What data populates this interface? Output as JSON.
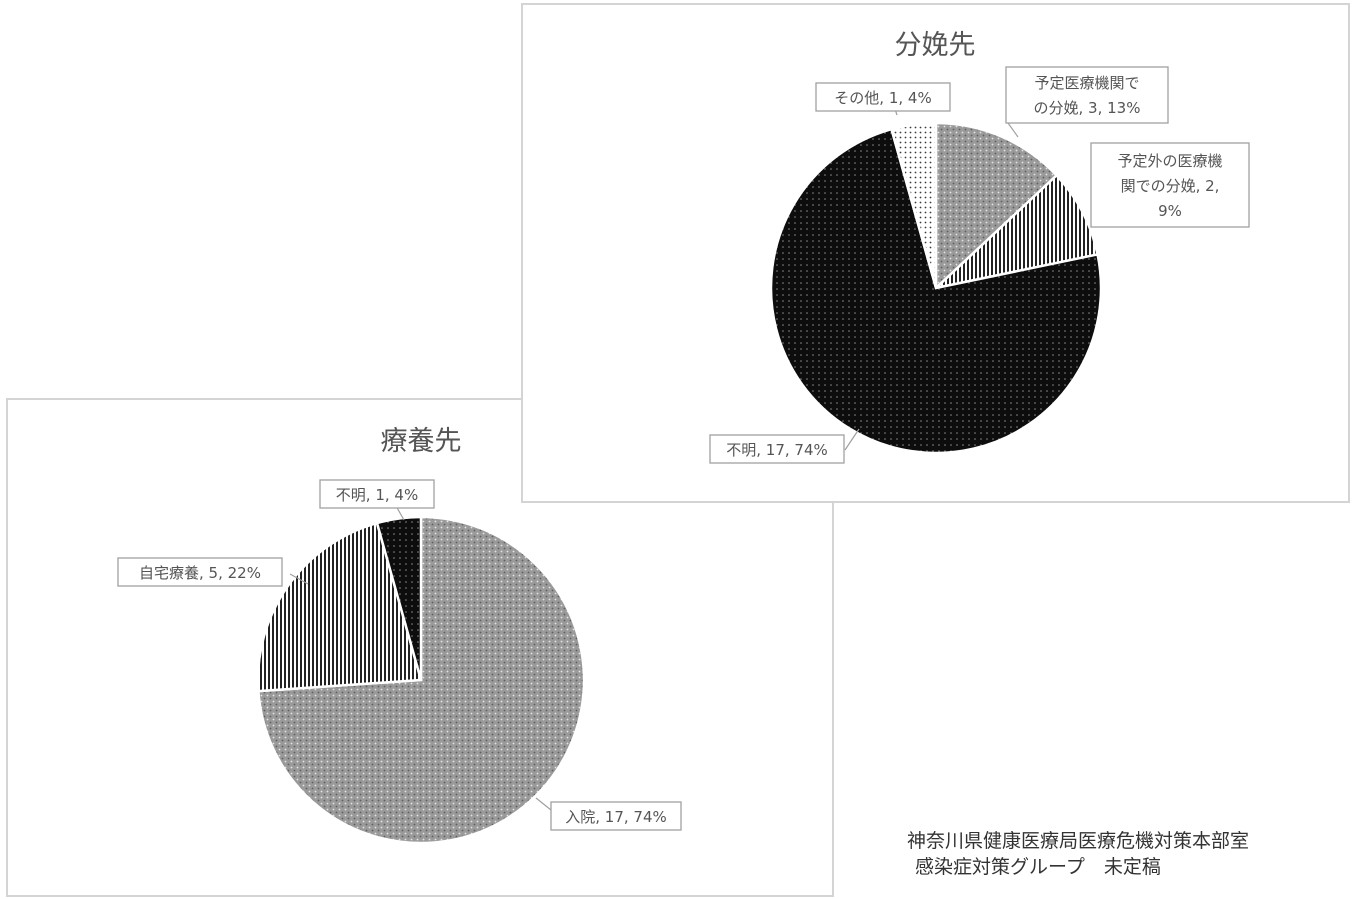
{
  "chart_data": [
    {
      "type": "pie",
      "title": "療養先",
      "slices": [
        {
          "label": "入院",
          "value": 17,
          "percent": "74%",
          "display": "入院, 17, 74%",
          "pattern": "dots-gray"
        },
        {
          "label": "自宅療養",
          "value": 5,
          "percent": "22%",
          "display": "自宅療養, 5, 22%",
          "pattern": "vertical-stripes"
        },
        {
          "label": "不明",
          "value": 1,
          "percent": "4%",
          "display": "不明, 1, 4%",
          "pattern": "dots-black"
        }
      ]
    },
    {
      "type": "pie",
      "title": "分娩先",
      "slices": [
        {
          "label": "予定医療機関での分娩",
          "value": 3,
          "percent": "13%",
          "display_lines": [
            "予定医療機関で",
            "の分娩, 3, 13%"
          ],
          "pattern": "dots-gray"
        },
        {
          "label": "予定外の医療機関での分娩",
          "value": 2,
          "percent": "9%",
          "display_lines": [
            "予定外の医療機",
            "関での分娩, 2,",
            "9%"
          ],
          "pattern": "vertical-stripes"
        },
        {
          "label": "不明",
          "value": 17,
          "percent": "74%",
          "display": "不明, 17, 74%",
          "pattern": "dots-black"
        },
        {
          "label": "その他",
          "value": 1,
          "percent": "4%",
          "display": "その他, 1, 4%",
          "pattern": "dots-white"
        }
      ]
    }
  ],
  "credit": {
    "line1": "神奈川県健康医療局医療危機対策本部室",
    "line2": "感染症対策グループ　未定稿"
  },
  "colors": {
    "dots_gray_base": "#9a9a9a",
    "dots_black_base": "#0d0d0d",
    "stripes": "#222222",
    "panel_border": "#d4d4d4",
    "label_border": "#a0a0a0"
  }
}
